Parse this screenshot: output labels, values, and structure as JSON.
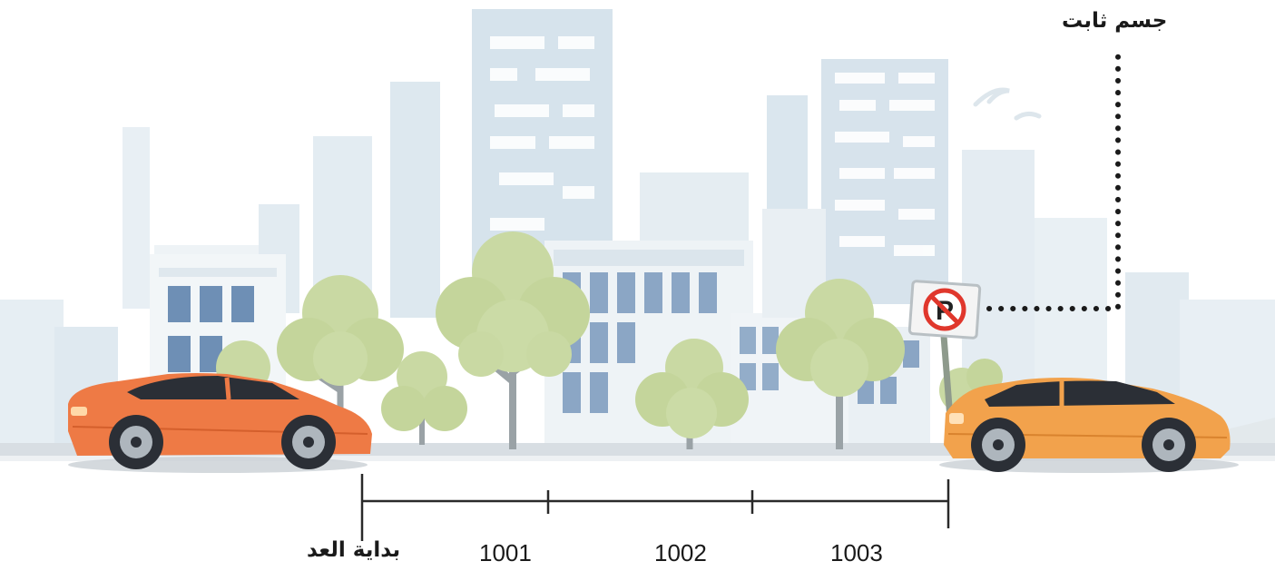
{
  "labels": {
    "fixed_object": "جسم ثابت",
    "start_point": "بداية العد",
    "marks": [
      "1001",
      "1002",
      "1003"
    ]
  },
  "sign": {
    "letter": "P",
    "meaning": "no-parking"
  },
  "colors": {
    "car_left": "#ee7a45",
    "car_right": "#f2a24c",
    "tree": "#c9d9a3",
    "building_light": "#e3ecf2",
    "building_mid": "#d3e0ea",
    "ground": "#d8dee3",
    "line": "#2a2a2a",
    "sign_red": "#e0372c"
  }
}
